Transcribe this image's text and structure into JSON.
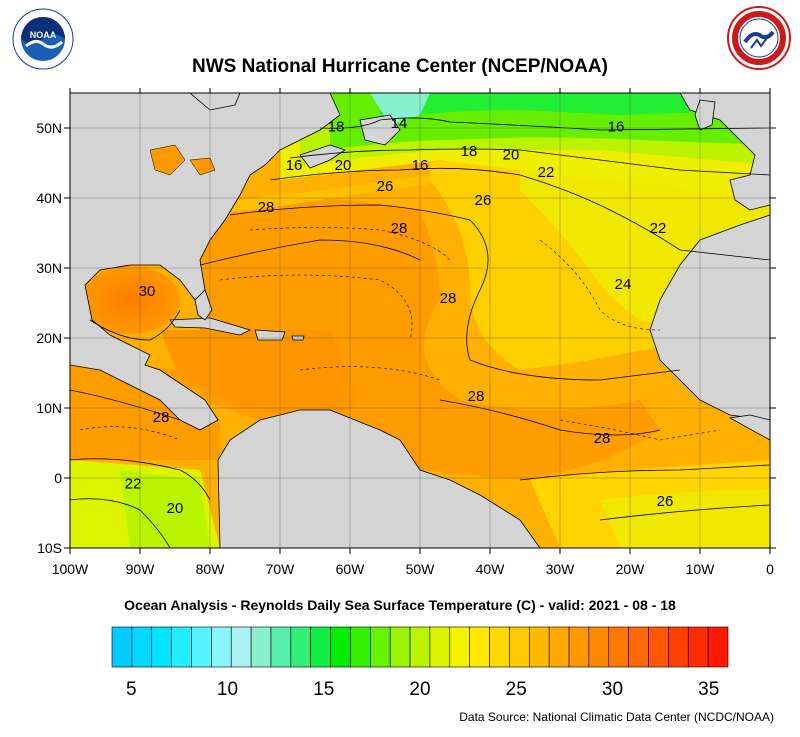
{
  "title": "NWS National Hurricane Center (NCEP/NOAA)",
  "subtitle": "Ocean Analysis - Reynolds Daily Sea Surface Temperature (C) - valid: 2021 - 08 - 18",
  "source": "Data Source: National Climatic Data Center (NCDC/NOAA)",
  "logos": {
    "left": {
      "name": "noaa-logo",
      "text": "NOAA"
    },
    "right": {
      "name": "nws-logo"
    }
  },
  "map": {
    "lon_range": [
      -100,
      0
    ],
    "lat_range": [
      -10,
      55
    ],
    "lon_ticks": [
      {
        "value": -100,
        "label": "100W"
      },
      {
        "value": -90,
        "label": "90W"
      },
      {
        "value": -80,
        "label": "80W"
      },
      {
        "value": -70,
        "label": "70W"
      },
      {
        "value": -60,
        "label": "60W"
      },
      {
        "value": -50,
        "label": "50W"
      },
      {
        "value": -40,
        "label": "40W"
      },
      {
        "value": -30,
        "label": "30W"
      },
      {
        "value": -20,
        "label": "20W"
      },
      {
        "value": -10,
        "label": "10W"
      },
      {
        "value": 0,
        "label": "0"
      }
    ],
    "lat_ticks": [
      {
        "value": 50,
        "label": "50N"
      },
      {
        "value": 40,
        "label": "40N"
      },
      {
        "value": 30,
        "label": "30N"
      },
      {
        "value": 20,
        "label": "20N"
      },
      {
        "value": 10,
        "label": "10N"
      },
      {
        "value": 0,
        "label": "0"
      },
      {
        "value": -10,
        "label": "10S"
      }
    ],
    "contour_labels": [
      {
        "text": "14",
        "lon": -53,
        "lat": 50
      },
      {
        "text": "16",
        "lon": -22,
        "lat": 49.5
      },
      {
        "text": "16",
        "lon": -68,
        "lat": 44
      },
      {
        "text": "18",
        "lon": -62,
        "lat": 49.5
      },
      {
        "text": "18",
        "lon": -43,
        "lat": 46
      },
      {
        "text": "20",
        "lon": -61,
        "lat": 44
      },
      {
        "text": "20",
        "lon": -37,
        "lat": 45.5
      },
      {
        "text": "16",
        "lon": -50,
        "lat": 44
      },
      {
        "text": "22",
        "lon": -32,
        "lat": 43
      },
      {
        "text": "26",
        "lon": -55,
        "lat": 41
      },
      {
        "text": "26",
        "lon": -41,
        "lat": 39
      },
      {
        "text": "28",
        "lon": -72,
        "lat": 38
      },
      {
        "text": "28",
        "lon": -53,
        "lat": 35
      },
      {
        "text": "22",
        "lon": -16,
        "lat": 35
      },
      {
        "text": "24",
        "lon": -21,
        "lat": 27
      },
      {
        "text": "30",
        "lon": -89,
        "lat": 26
      },
      {
        "text": "28",
        "lon": -46,
        "lat": 25
      },
      {
        "text": "28",
        "lon": -42,
        "lat": 11
      },
      {
        "text": "28",
        "lon": -87,
        "lat": 8
      },
      {
        "text": "28",
        "lon": -24,
        "lat": 5
      },
      {
        "text": "22",
        "lon": -91,
        "lat": -1.5
      },
      {
        "text": "20",
        "lon": -85,
        "lat": -5
      },
      {
        "text": "26",
        "lon": -15,
        "lat": -4
      }
    ]
  },
  "colorbar": {
    "colors": [
      "#00ccff",
      "#00d8ff",
      "#00e4ff",
      "#22eeff",
      "#55f2ff",
      "#88f6ff",
      "#aaf2f2",
      "#88f0cc",
      "#55eeaa",
      "#33ee77",
      "#11ee44",
      "#00ee00",
      "#33f000",
      "#66f200",
      "#99f400",
      "#bbf400",
      "#ddf400",
      "#f4f400",
      "#ffe800",
      "#ffd800",
      "#ffc800",
      "#ffb800",
      "#ffa800",
      "#ff9800",
      "#ff8800",
      "#ff7800",
      "#ff6800",
      "#ff5800",
      "#ff4000",
      "#ff2c00",
      "#ff1a00"
    ],
    "ticks": [
      {
        "value": 5,
        "label": "5"
      },
      {
        "value": 10,
        "label": "10"
      },
      {
        "value": 15,
        "label": "15"
      },
      {
        "value": 20,
        "label": "20"
      },
      {
        "value": 25,
        "label": "25"
      },
      {
        "value": 30,
        "label": "30"
      },
      {
        "value": 35,
        "label": "35"
      }
    ],
    "range": [
      4,
      36
    ]
  }
}
